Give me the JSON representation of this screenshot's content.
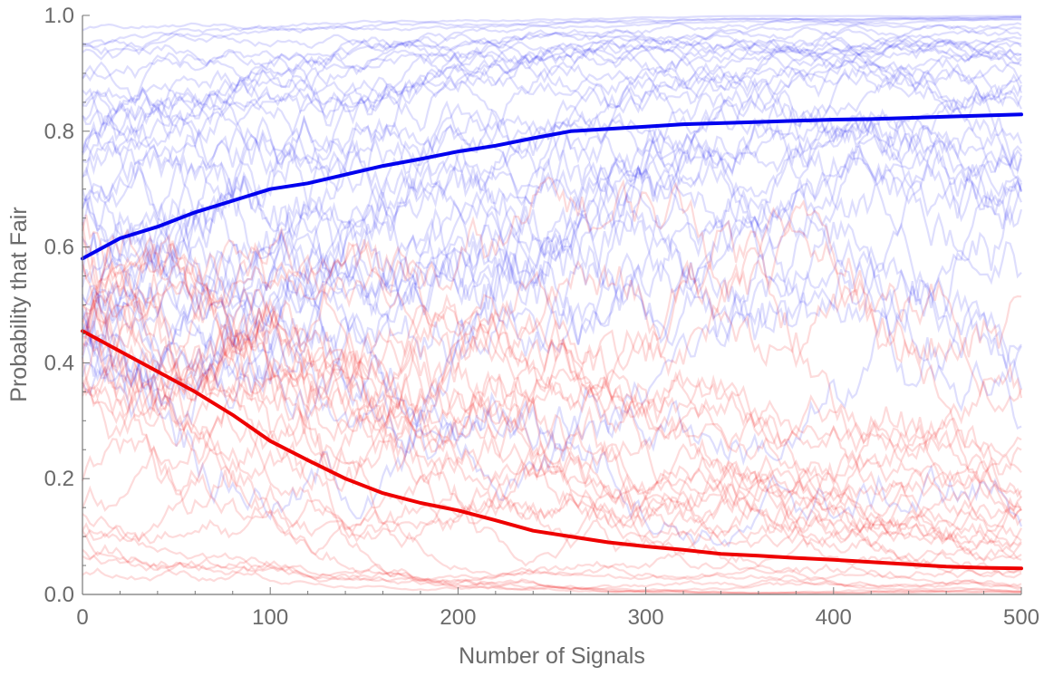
{
  "chart_data": {
    "type": "line",
    "title": "",
    "xlabel": "Number of Signals",
    "ylabel": "Probability that Fair",
    "xlim": [
      0,
      500
    ],
    "ylim": [
      0,
      1
    ],
    "x_ticks": [
      "0",
      "100",
      "200",
      "300",
      "400",
      "500"
    ],
    "y_ticks": [
      "0.0",
      "0.2",
      "0.4",
      "0.6",
      "0.8",
      "1.0"
    ],
    "grid": false,
    "colors": {
      "fair": "#0000ee",
      "unfair": "#ee0000",
      "axis": "#777777"
    },
    "series": [
      {
        "x": [
          0,
          20,
          40,
          60,
          80,
          100,
          120,
          140,
          160,
          180,
          200,
          220,
          240,
          260,
          280,
          300,
          320,
          340,
          360,
          380,
          400,
          420,
          440,
          460,
          480,
          500
        ],
        "values": [
          0.58,
          0.615,
          0.635,
          0.66,
          0.68,
          0.7,
          0.71,
          0.725,
          0.74,
          0.752,
          0.765,
          0.775,
          0.788,
          0.8,
          0.804,
          0.808,
          0.812,
          0.814,
          0.816,
          0.818,
          0.82,
          0.821,
          0.823,
          0.825,
          0.827,
          0.829
        ]
      },
      {
        "x": [
          0,
          20,
          40,
          60,
          80,
          100,
          120,
          140,
          160,
          180,
          200,
          220,
          240,
          260,
          280,
          300,
          320,
          340,
          360,
          380,
          400,
          420,
          440,
          460,
          480,
          500
        ],
        "values": [
          0.455,
          0.42,
          0.385,
          0.35,
          0.31,
          0.265,
          0.232,
          0.2,
          0.175,
          0.158,
          0.145,
          0.128,
          0.11,
          0.1,
          0.09,
          0.083,
          0.077,
          0.07,
          0.067,
          0.063,
          0.06,
          0.056,
          0.052,
          0.048,
          0.046,
          0.045
        ]
      }
    ]
  }
}
